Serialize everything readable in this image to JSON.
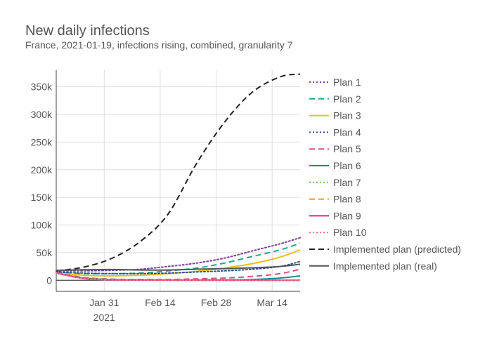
{
  "chart_data": {
    "type": "line",
    "title": "New daily infections",
    "subtitle": "France, 2021-01-19, infections rising, combined, granularity 7",
    "xlabel": "",
    "ylabel": "",
    "x_ticks": [
      {
        "date": "2021-01-31",
        "label": "Jan 31",
        "sublabel": "2021"
      },
      {
        "date": "2021-02-14",
        "label": "Feb 14",
        "sublabel": ""
      },
      {
        "date": "2021-02-28",
        "label": "Feb 28",
        "sublabel": ""
      },
      {
        "date": "2021-03-14",
        "label": "Mar 14",
        "sublabel": ""
      }
    ],
    "y_ticks": [
      0,
      50000,
      100000,
      150000,
      200000,
      250000,
      300000,
      350000
    ],
    "y_tick_labels": [
      "0",
      "50k",
      "100k",
      "150k",
      "200k",
      "250k",
      "300k",
      "350k"
    ],
    "xlim": [
      "2021-01-19",
      "2021-03-21"
    ],
    "ylim": [
      -20000,
      380000
    ],
    "grid": true,
    "legend_position": "right",
    "x": [
      "2021-01-19",
      "2021-01-26",
      "2021-02-02",
      "2021-02-09",
      "2021-02-16",
      "2021-02-23",
      "2021-03-02",
      "2021-03-09",
      "2021-03-16",
      "2021-03-21"
    ],
    "series": [
      {
        "name": "Plan 1",
        "color": "#7e3f98",
        "dash": "dot",
        "values": [
          17000,
          17000,
          18000,
          20000,
          25000,
          31000,
          40000,
          53000,
          66000,
          77000
        ]
      },
      {
        "name": "Plan 2",
        "color": "#1baa8c",
        "dash": "dash",
        "values": [
          15000,
          12000,
          12000,
          13000,
          17000,
          22000,
          31000,
          43000,
          55000,
          67000
        ]
      },
      {
        "name": "Plan 3",
        "color": "#f2be1c",
        "dash": "solid",
        "values": [
          14000,
          9000,
          8000,
          9000,
          12000,
          16000,
          22000,
          30000,
          42000,
          55000
        ]
      },
      {
        "name": "Plan 4",
        "color": "#2e4f8c",
        "dash": "dot",
        "values": [
          15000,
          13000,
          12000,
          12000,
          13000,
          15000,
          17000,
          20000,
          25000,
          34000
        ]
      },
      {
        "name": "Plan 5",
        "color": "#d94e8b",
        "dash": "dash",
        "values": [
          14000,
          5000,
          2000,
          1500,
          1500,
          2500,
          4000,
          7000,
          12000,
          20000
        ]
      },
      {
        "name": "Plan 6",
        "color": "#11898b",
        "dash": "solid",
        "values": [
          13000,
          4000,
          1500,
          800,
          500,
          500,
          800,
          1500,
          4000,
          8000
        ]
      },
      {
        "name": "Plan 7",
        "color": "#6cc24a",
        "dash": "dot",
        "values": [
          13000,
          4000,
          1200,
          500,
          300,
          200,
          200,
          200,
          300,
          500
        ]
      },
      {
        "name": "Plan 8",
        "color": "#f5921e",
        "dash": "dash",
        "values": [
          13000,
          3500,
          1000,
          400,
          200,
          100,
          100,
          100,
          100,
          100
        ]
      },
      {
        "name": "Plan 9",
        "color": "#e0258c",
        "dash": "solid",
        "values": [
          13000,
          3000,
          800,
          300,
          100,
          50,
          0,
          0,
          0,
          0
        ]
      },
      {
        "name": "Plan 10",
        "color": "#e8727e",
        "dash": "dot",
        "values": [
          13000,
          3000,
          700,
          200,
          100,
          0,
          0,
          0,
          0,
          0
        ]
      },
      {
        "name": "Implemented plan (predicted)",
        "color": "#222222",
        "dash": "dash",
        "values": [
          17000,
          24000,
          40000,
          70000,
          120000,
          210000,
          285000,
          340000,
          368000,
          373000
        ]
      },
      {
        "name": "Implemented plan (real)",
        "color": "#555555",
        "dash": "solid",
        "values": [
          18000,
          19000,
          19500,
          18500,
          18500,
          20000,
          21000,
          22500,
          25000,
          29000
        ]
      }
    ]
  }
}
